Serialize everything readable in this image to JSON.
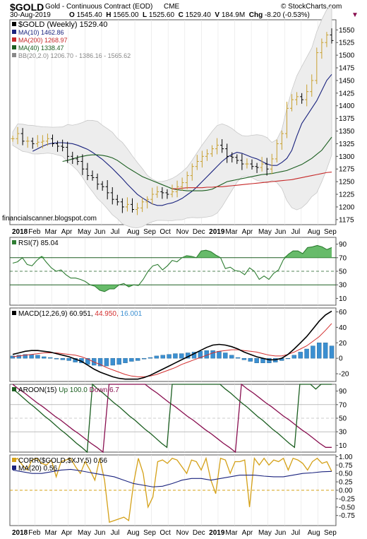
{
  "header": {
    "symbol": "$GOLD",
    "description": "Gold - Continuous Contract (EOD)",
    "exchange": "CME",
    "watermark": "© StockCharts.com",
    "date": "30-Aug-2019",
    "quote": {
      "o_label": "O",
      "o": "1545.40",
      "h_label": "H",
      "h": "1565.00",
      "l_label": "L",
      "l": "1525.60",
      "c_label": "C",
      "c": "1529.40",
      "v_label": "V",
      "v": "184.9M",
      "chg_label": "Chg",
      "chg": "-8.20 (-0.53%)"
    },
    "credit": "financialscanner.blogspot.com"
  },
  "colors": {
    "up": "#c8a030",
    "down": "#000000",
    "ma10": "#1a237e",
    "ma200": "#c62828",
    "ma40": "#1b5e20",
    "bb": "#cccccc",
    "rsi": "#2e7d32",
    "macd": "#000000",
    "signal": "#d32f2f",
    "hist": "#3b8fd1",
    "aroon_up": "#1b5e20",
    "aroon_down": "#880e4f",
    "corr": "#d4a017",
    "corr_ma": "#1a237e"
  },
  "x_axis": {
    "labels": [
      "2018",
      "Feb",
      "Mar",
      "Apr",
      "May",
      "Jun",
      "Jul",
      "Aug",
      "Sep",
      "Oct",
      "Nov",
      "Dec",
      "2019",
      "Mar",
      "Apr",
      "May",
      "Jun",
      "Jul",
      "Aug",
      "Sep"
    ]
  },
  "panels": {
    "price": {
      "legend": [
        {
          "name": "$GOLD (Weekly)",
          "value": "1529.40"
        },
        {
          "name": "MA(10)",
          "value": "1462.86"
        },
        {
          "name": "MA(200)",
          "value": "1268.97"
        },
        {
          "name": "MA(40)",
          "value": "1338.47"
        },
        {
          "name": "BB(20,2.0)",
          "value": "1206.70 - 1386.16 - 1565.62"
        }
      ]
    },
    "rsi": {
      "legend": {
        "name": "RSI(7)",
        "value": "85.04"
      }
    },
    "macd": {
      "legend": {
        "name": "MACD(12,26,9)",
        "v1": "60.951",
        "v2": "44.950",
        "v3": "16.001"
      }
    },
    "aroon": {
      "legend": {
        "name": "AROON(15)",
        "up": "Up 100.0",
        "down": "Down 6.7"
      }
    },
    "corr": {
      "legend": [
        {
          "name": "CORR($GOLD,$XJY,5)",
          "value": "0.56"
        },
        {
          "name": "MA(20)",
          "value": "0.56"
        }
      ]
    }
  },
  "chart_data": [
    {
      "type": "line",
      "title": "$GOLD (Weekly)",
      "ylim": [
        1165,
        1570
      ],
      "yticks": [
        1175,
        1200,
        1225,
        1250,
        1275,
        1300,
        1325,
        1350,
        1375,
        1400,
        1425,
        1450,
        1475,
        1500,
        1525,
        1550
      ],
      "close": [
        1335,
        1345,
        1330,
        1330,
        1325,
        1328,
        1330,
        1335,
        1325,
        1320,
        1318,
        1300,
        1295,
        1290,
        1275,
        1262,
        1258,
        1245,
        1240,
        1228,
        1215,
        1210,
        1200,
        1205,
        1195,
        1198,
        1210,
        1215,
        1225,
        1230,
        1228,
        1225,
        1230,
        1240,
        1248,
        1262,
        1280,
        1290,
        1300,
        1305,
        1315,
        1322,
        1315,
        1300,
        1298,
        1292,
        1285,
        1285,
        1280,
        1278,
        1285,
        1275,
        1295,
        1325,
        1345,
        1395,
        1412,
        1418,
        1412,
        1428,
        1450,
        1505,
        1525,
        1540,
        1529
      ],
      "series": [
        {
          "name": "MA(10)",
          "values": [
            1310,
            1315,
            1320,
            1324,
            1326,
            1327,
            1327,
            1326,
            1325,
            1322,
            1318,
            1314,
            1308,
            1301,
            1294,
            1285,
            1276,
            1266,
            1256,
            1245,
            1235,
            1225,
            1218,
            1212,
            1206,
            1203,
            1203,
            1206,
            1208,
            1212,
            1217,
            1224,
            1231,
            1240,
            1250,
            1260,
            1270,
            1280,
            1290,
            1298,
            1304,
            1308,
            1306,
            1302,
            1298,
            1295,
            1290,
            1285,
            1282,
            1282,
            1288,
            1296,
            1312,
            1340,
            1365,
            1380,
            1395,
            1410,
            1430,
            1450,
            1462
          ]
        },
        {
          "name": "MA(40)",
          "values": [
            1290,
            1292,
            1295,
            1298,
            1300,
            1302,
            1303,
            1303,
            1302,
            1300,
            1297,
            1292,
            1285,
            1278,
            1272,
            1266,
            1260,
            1256,
            1252,
            1248,
            1244,
            1240,
            1236,
            1234,
            1233,
            1232,
            1232,
            1232,
            1232,
            1233,
            1235,
            1240,
            1245,
            1250,
            1252,
            1254,
            1256,
            1258,
            1260,
            1262,
            1264,
            1265,
            1266,
            1268,
            1270,
            1272,
            1276,
            1280,
            1284,
            1290,
            1296,
            1304,
            1312,
            1325,
            1338
          ]
        },
        {
          "name": "MA(200)",
          "values": [
            1236,
            1236,
            1237,
            1238,
            1238,
            1238,
            1238,
            1239,
            1239,
            1240,
            1240,
            1241,
            1242,
            1243,
            1244,
            1245,
            1246,
            1247,
            1248,
            1249,
            1250,
            1251,
            1252,
            1253,
            1254,
            1256,
            1258,
            1260,
            1262,
            1264,
            1266,
            1268,
            1269
          ]
        }
      ],
      "bollinger": {
        "upper": "1565.62",
        "mid": "1386.16",
        "lower": "1206.70"
      }
    },
    {
      "type": "area",
      "title": "RSI(7)",
      "ylim": [
        0,
        100
      ],
      "yticks": [
        10,
        30,
        50,
        70,
        90
      ],
      "levels": [
        30,
        70
      ],
      "values": [
        62,
        64,
        70,
        60,
        58,
        66,
        72,
        63,
        55,
        50,
        52,
        45,
        40,
        40,
        38,
        35,
        30,
        28,
        22,
        20,
        24,
        24,
        30,
        32,
        27,
        30,
        29,
        38,
        50,
        58,
        60,
        52,
        58,
        66,
        64,
        70,
        73,
        72,
        70,
        80,
        81,
        79,
        74,
        70,
        54,
        56,
        51,
        50,
        45,
        55,
        50,
        38,
        43,
        38,
        47,
        52,
        67,
        75,
        80,
        80,
        76,
        85,
        86,
        88,
        86,
        82,
        85
      ]
    },
    {
      "type": "line",
      "title": "MACD(12,26,9)",
      "ylim": [
        -30,
        65
      ],
      "yticks": [
        -20,
        0,
        20,
        40,
        60
      ],
      "series": [
        {
          "name": "MACD",
          "values": [
            5,
            7,
            9,
            10,
            10,
            9,
            8,
            6,
            4,
            2,
            -1,
            -4,
            -9,
            -14,
            -18,
            -21,
            -24,
            -26,
            -27,
            -27,
            -27,
            -25,
            -22,
            -18,
            -14,
            -10,
            -6,
            -2,
            2,
            6,
            10,
            14,
            17,
            18,
            17,
            15,
            12,
            8,
            5,
            2,
            0,
            -2,
            -2,
            0,
            5,
            12,
            20,
            28,
            38,
            48,
            56,
            61
          ]
        },
        {
          "name": "Signal",
          "values": [
            2,
            3,
            4,
            5,
            6,
            7,
            7,
            7,
            6,
            5,
            4,
            2,
            -1,
            -5,
            -8,
            -12,
            -15,
            -18,
            -21,
            -23,
            -24,
            -24,
            -23,
            -21,
            -18,
            -15,
            -12,
            -8,
            -5,
            -2,
            1,
            4,
            7,
            9,
            10,
            11,
            11,
            10,
            9,
            8,
            6,
            4,
            3,
            3,
            5,
            8,
            12,
            16,
            22,
            28,
            36,
            45
          ]
        }
      ],
      "histogram": [
        3,
        4,
        5,
        5,
        4,
        2,
        1,
        -1,
        -2,
        -3,
        -5,
        -6,
        -8,
        -9,
        -10,
        -10,
        -9,
        -8,
        -6,
        -4,
        -3,
        -1,
        1,
        3,
        4,
        5,
        6,
        6,
        7,
        8,
        9,
        10,
        10,
        9,
        7,
        4,
        1,
        -2,
        -4,
        -6,
        -6,
        -6,
        -5,
        -3,
        0,
        4,
        8,
        12,
        16,
        20,
        20,
        16
      ]
    },
    {
      "type": "line",
      "title": "AROON(15)",
      "ylim": [
        0,
        100
      ],
      "yticks": [
        10,
        30,
        50,
        70,
        90
      ],
      "series": [
        {
          "name": "Up",
          "values": [
            93,
            87,
            80,
            73,
            67,
            60,
            53,
            47,
            40,
            33,
            27,
            20,
            13,
            7,
            0,
            100,
            93,
            87,
            80,
            73,
            67,
            60,
            53,
            47,
            40,
            33,
            27,
            20,
            13,
            7,
            100,
            100,
            100,
            100,
            100,
            100,
            100,
            100,
            100,
            100,
            93,
            87,
            80,
            73,
            67,
            60,
            53,
            47,
            40,
            33,
            27,
            20,
            13,
            7,
            100,
            100,
            100,
            93,
            100,
            100,
            100
          ]
        },
        {
          "name": "Down",
          "values": [
            100,
            93,
            87,
            80,
            73,
            67,
            60,
            53,
            47,
            40,
            33,
            27,
            20,
            13,
            7,
            0,
            100,
            100,
            100,
            100,
            100,
            100,
            100,
            93,
            87,
            80,
            73,
            67,
            60,
            53,
            47,
            40,
            33,
            27,
            20,
            13,
            7,
            0,
            100,
            93,
            87,
            80,
            73,
            67,
            60,
            53,
            47,
            40,
            33,
            27,
            20,
            13,
            7,
            7
          ]
        }
      ]
    },
    {
      "type": "line",
      "title": "CORR($GOLD,$XJY,5)",
      "ylim": [
        -1,
        1
      ],
      "yticks": [
        -0.75,
        -0.5,
        -0.25,
        0,
        0.25,
        0.5,
        0.75,
        1
      ],
      "series": [
        {
          "name": "CORR",
          "values": [
            0.85,
            0.95,
            0.75,
            0.6,
            0.9,
            0.95,
            0.8,
            0.75,
            0.9,
            0.4,
            0.85,
            0.9,
            0.95,
            0.7,
            0.5,
            0.85,
            0.6,
            0.3,
            0.95,
            0.3,
            -0.95,
            -0.9,
            -0.85,
            -0.8,
            -0.9,
            0.2,
            0.95,
            0.5,
            -0.5,
            -0.2,
            0.85,
            0.9,
            0.8,
            0.95,
            0.9,
            0.7,
            0.5,
            0.9,
            0.85,
            0.6,
            0.95,
            0.3,
            -0.1,
            0.95,
            0.9,
            0.5,
            0.85,
            0.85,
            0.9,
            -0.5,
            0.95,
            0.75,
            0.95,
            0.75,
            0.9,
            0.85,
            0.95,
            0.6,
            0.95,
            0.9,
            0.8,
            0.6,
            0.85,
            0.95,
            0.8,
            0.85,
            0.56
          ]
        },
        {
          "name": "MA(20)",
          "values": [
            0.6,
            0.55,
            0.5,
            0.5,
            0.55,
            0.6,
            0.62,
            0.58,
            0.5,
            0.45,
            0.4,
            0.3,
            0.2,
            0.15,
            0.1,
            0.12,
            0.2,
            0.3,
            0.35,
            0.35,
            0.3,
            0.35,
            0.4,
            0.45,
            0.45,
            0.42,
            0.4,
            0.4,
            0.45,
            0.5,
            0.52,
            0.55,
            0.56
          ]
        }
      ]
    }
  ]
}
